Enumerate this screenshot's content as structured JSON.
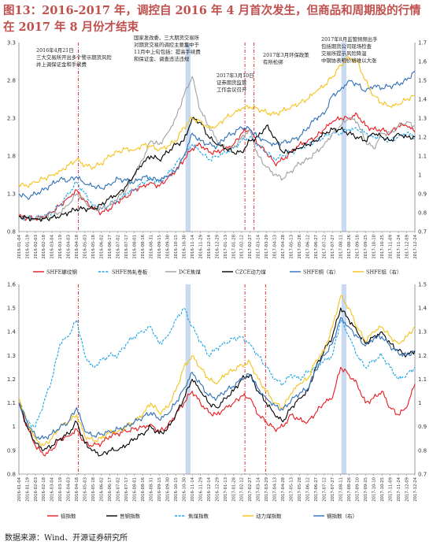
{
  "title": "图13：2016-2017 年，调控自 2016 年 4 月首次发生，但商品和周期股的行情在 2017 年 8 月份才结束",
  "source": "数据来源：Wind、开源证券研究所",
  "colors": {
    "red": "#e8191f",
    "black": "#000000",
    "lightblue": "#1aa3e8",
    "gray": "#a0a0a0",
    "gold": "#f5c21b",
    "blue": "#2f6fb7",
    "band": "#c9daf0",
    "vline": "#e0202a"
  },
  "chart_data": [
    {
      "type": "line",
      "y_left_ticks": [
        "0.8",
        "1.3",
        "1.8",
        "2.3",
        "2.8",
        "3.3"
      ],
      "y_right_ticks": [
        "0.7",
        "0.8",
        "0.9",
        "1",
        "1.1",
        "1.2",
        "1.3",
        "1.4",
        "1.5",
        "1.6",
        "1.7"
      ],
      "ylim_left": [
        0.8,
        3.3
      ],
      "ylim_right": [
        0.7,
        1.7
      ],
      "x_ticks": [
        "2016-01-04",
        "2016-01-19",
        "2016-02-03",
        "2016-02-18",
        "2016-03-04",
        "2016-03-19",
        "2016-04-03",
        "2016-04-18",
        "2016-05-03",
        "2016-05-18",
        "2016-06-02",
        "2016-06-17",
        "2016-07-02",
        "2016-07-17",
        "2016-08-01",
        "2016-08-16",
        "2016-08-31",
        "2016-09-15",
        "2016-09-30",
        "2016-10-15",
        "2016-10-30",
        "2016-11-14",
        "2016-11-29",
        "2016-12-14",
        "2016-12-29",
        "2017-01-13",
        "2017-01-28",
        "2017-02-12",
        "2017-02-27",
        "2017-03-14",
        "2017-03-29",
        "2017-04-13",
        "2017-04-28",
        "2017-05-13",
        "2017-05-28",
        "2017-06-12",
        "2017-06-27",
        "2017-07-12",
        "2017-07-27",
        "2017-08-11",
        "2017-08-26",
        "2017-09-10",
        "2017-09-25",
        "2017-10-10",
        "2017-10-25",
        "2017-11-09",
        "2017-11-24",
        "2017-12-09",
        "2017-12-24"
      ],
      "annotations": [
        {
          "text": [
            "2016年4月21日",
            "三大交易所开出多个警示期货风险",
            "并上调保证金和手续费"
          ]
        },
        {
          "text": [
            "国家发改委、三大期货交易所",
            "对期货交易的调控主要集中于",
            "11月中上旬包括：提高手续费",
            "和保证金、调查违法违规"
          ]
        },
        {
          "text": [
            "2017年3月10日",
            "证券期货监管",
            "工作会议召开"
          ]
        },
        {
          "text": [
            "2017年3月环保政策",
            "有所松绑"
          ]
        },
        {
          "text": [
            "2017年8月监管频频出手",
            "包括期货公司现场检查",
            "交易所提示风险降温",
            "中钢协表明价格难以大涨"
          ]
        }
      ],
      "series": [
        {
          "name": "SHFE螺纹钢",
          "color": "#e8191f",
          "axis": "left",
          "values": [
            1.0,
            0.98,
            0.97,
            0.99,
            1.05,
            1.15,
            1.25,
            1.35,
            1.2,
            1.1,
            1.05,
            1.1,
            1.2,
            1.25,
            1.35,
            1.4,
            1.45,
            1.4,
            1.5,
            1.6,
            1.75,
            1.9,
            1.95,
            1.85,
            1.85,
            1.9,
            1.95,
            2.1,
            2.15,
            1.95,
            1.85,
            1.7,
            1.75,
            1.85,
            1.95,
            2.0,
            2.05,
            2.15,
            2.25,
            2.3,
            2.3,
            2.35,
            2.2,
            2.15,
            2.15,
            2.1,
            2.2,
            2.2,
            2.12
          ]
        },
        {
          "name": "SHFE热轧卷板",
          "color": "#1aa3e8",
          "dash": true,
          "axis": "left",
          "values": [
            1.0,
            0.98,
            0.98,
            1.0,
            1.05,
            1.15,
            1.3,
            1.45,
            1.3,
            1.15,
            1.1,
            1.15,
            1.2,
            1.3,
            1.35,
            1.45,
            1.5,
            1.45,
            1.55,
            1.7,
            1.8,
            1.95,
            1.85,
            1.75,
            1.8,
            1.85,
            1.9,
            2.0,
            2.05,
            1.95,
            1.85,
            1.75,
            1.8,
            1.85,
            1.9,
            1.95,
            2.0,
            2.05,
            2.1,
            2.1,
            2.15,
            2.15,
            2.1,
            2.05,
            2.05,
            2.0,
            2.05,
            2.1,
            2.05
          ]
        },
        {
          "name": "DCE焦煤",
          "color": "#a0a0a0",
          "axis": "left",
          "values": [
            1.0,
            0.98,
            0.97,
            0.98,
            1.0,
            1.05,
            1.15,
            1.3,
            1.2,
            1.1,
            1.1,
            1.15,
            1.25,
            1.35,
            1.55,
            1.75,
            2.0,
            1.95,
            2.1,
            2.3,
            2.6,
            2.85,
            2.4,
            2.2,
            2.0,
            1.9,
            1.9,
            2.05,
            2.15,
            1.8,
            1.65,
            1.55,
            1.5,
            1.6,
            1.7,
            1.75,
            1.85,
            1.95,
            2.1,
            2.2,
            2.3,
            2.25,
            2.0,
            1.9,
            2.1,
            2.1,
            2.2,
            2.25,
            2.2
          ]
        },
        {
          "name": "CZCE动力煤",
          "color": "#000000",
          "axis": "left",
          "values": [
            1.0,
            0.98,
            0.97,
            0.97,
            0.98,
            1.0,
            1.05,
            1.1,
            1.1,
            1.1,
            1.15,
            1.25,
            1.3,
            1.4,
            1.55,
            1.7,
            1.8,
            1.75,
            1.85,
            1.95,
            2.0,
            2.3,
            2.25,
            2.05,
            1.95,
            1.9,
            1.85,
            1.85,
            2.0,
            2.05,
            2.2,
            2.05,
            1.85,
            1.85,
            1.9,
            1.95,
            2.0,
            2.1,
            2.15,
            2.15,
            2.1,
            2.05,
            2.0,
            2.1,
            2.05,
            2.0,
            2.1,
            2.05,
            2.05
          ]
        },
        {
          "name": "SHFE铜（右）",
          "color": "#2f6fb7",
          "axis": "right",
          "values": [
            0.9,
            0.88,
            0.9,
            0.92,
            0.95,
            0.98,
            0.97,
            0.99,
            0.95,
            0.94,
            0.93,
            0.95,
            0.98,
            0.97,
            0.96,
            0.99,
            0.98,
            0.97,
            0.99,
            1.02,
            1.1,
            1.22,
            1.18,
            1.16,
            1.15,
            1.2,
            1.22,
            1.25,
            1.24,
            1.2,
            1.18,
            1.16,
            1.17,
            1.18,
            1.2,
            1.25,
            1.3,
            1.32,
            1.42,
            1.45,
            1.5,
            1.48,
            1.44,
            1.47,
            1.46,
            1.47,
            1.48,
            1.5,
            1.55
          ]
        },
        {
          "name": "SHFE铝（右）",
          "color": "#f5c21b",
          "axis": "right",
          "values": [
            0.95,
            0.94,
            0.96,
            0.98,
            1.0,
            1.02,
            1.05,
            1.08,
            1.05,
            1.04,
            1.06,
            1.1,
            1.12,
            1.14,
            1.13,
            1.16,
            1.15,
            1.13,
            1.15,
            1.18,
            1.25,
            1.3,
            1.28,
            1.25,
            1.26,
            1.3,
            1.32,
            1.35,
            1.36,
            1.35,
            1.33,
            1.32,
            1.34,
            1.36,
            1.38,
            1.4,
            1.44,
            1.47,
            1.52,
            1.58,
            1.62,
            1.6,
            1.5,
            1.42,
            1.38,
            1.36,
            1.37,
            1.4,
            1.42
          ]
        }
      ]
    },
    {
      "type": "line",
      "y_left_ticks": [
        "0.8",
        "0.9",
        "1",
        "1.1",
        "1.2",
        "1.3",
        "1.4",
        "1.5",
        "1.6"
      ],
      "y_right_ticks": [
        "0.7",
        "0.8",
        "0.9",
        "1",
        "1.1",
        "1.2",
        "1.3",
        "1.4",
        "1.5"
      ],
      "ylim_left": [
        0.8,
        1.6
      ],
      "ylim_right": [
        0.7,
        1.5
      ],
      "x_ticks": [
        "2016-01-04",
        "2016-01-19",
        "2016-02-03",
        "2016-02-18",
        "2016-03-04",
        "2016-03-19",
        "2016-04-03",
        "2016-04-18",
        "2016-05-03",
        "2016-05-18",
        "2016-06-02",
        "2016-06-17",
        "2016-07-02",
        "2016-07-17",
        "2016-08-01",
        "2016-08-16",
        "2016-08-31",
        "2016-09-15",
        "2016-09-30",
        "2016-10-15",
        "2016-10-30",
        "2016-11-14",
        "2016-11-29",
        "2016-12-14",
        "2016-12-29",
        "2017-01-13",
        "2017-01-28",
        "2017-02-12",
        "2017-02-27",
        "2017-03-14",
        "2017-03-29",
        "2017-04-13",
        "2017-04-28",
        "2017-05-13",
        "2017-05-28",
        "2017-06-12",
        "2017-06-27",
        "2017-07-12",
        "2017-07-27",
        "2017-08-11",
        "2017-08-26",
        "2017-09-10",
        "2017-09-25",
        "2017-10-10",
        "2017-10-25",
        "2017-11-09",
        "2017-11-24",
        "2017-12-09",
        "2017-12-24"
      ],
      "series": [
        {
          "name": "铝指数",
          "color": "#e8191f",
          "axis": "left",
          "values": [
            1.1,
            1.0,
            0.92,
            0.88,
            0.9,
            0.95,
            0.96,
            0.99,
            0.93,
            0.92,
            0.93,
            0.96,
            0.97,
            0.98,
            0.99,
            1.0,
            1.01,
            0.98,
            1.0,
            1.05,
            1.1,
            1.15,
            1.1,
            1.06,
            1.05,
            1.08,
            1.1,
            1.13,
            1.12,
            1.05,
            1.02,
            0.99,
            1.0,
            1.05,
            1.03,
            1.02,
            1.06,
            1.1,
            1.12,
            1.25,
            1.22,
            1.18,
            1.1,
            1.12,
            1.15,
            1.08,
            1.05,
            1.08,
            1.18
          ]
        },
        {
          "name": "普钢指数",
          "color": "#000000",
          "axis": "left",
          "values": [
            1.1,
            1.0,
            0.93,
            0.9,
            0.92,
            0.95,
            0.97,
            1.02,
            0.93,
            0.9,
            0.88,
            0.9,
            0.9,
            0.92,
            0.95,
            0.97,
            1.0,
            0.97,
            0.99,
            1.05,
            1.12,
            1.2,
            1.15,
            1.1,
            1.08,
            1.12,
            1.15,
            1.2,
            1.22,
            1.15,
            1.1,
            1.05,
            1.02,
            1.08,
            1.12,
            1.15,
            1.25,
            1.32,
            1.38,
            1.5,
            1.45,
            1.4,
            1.35,
            1.38,
            1.4,
            1.35,
            1.32,
            1.3,
            1.32
          ]
        },
        {
          "name": "焦煤指数",
          "color": "#1aa3e8",
          "dash": true,
          "axis": "left",
          "values": [
            1.12,
            1.02,
            1.0,
            1.1,
            1.2,
            1.35,
            1.38,
            1.45,
            1.3,
            1.25,
            1.28,
            1.3,
            1.3,
            1.35,
            1.38,
            1.4,
            1.42,
            1.35,
            1.38,
            1.45,
            1.5,
            1.42,
            1.36,
            1.3,
            1.33,
            1.35,
            1.37,
            1.38,
            1.35,
            1.3,
            1.25,
            1.2,
            1.18,
            1.22,
            1.2,
            1.23,
            1.25,
            1.28,
            1.3,
            1.45,
            1.38,
            1.3,
            1.25,
            1.28,
            1.3,
            1.25,
            1.2,
            1.22,
            1.25
          ]
        },
        {
          "name": "动力煤指数",
          "color": "#f5c21b",
          "axis": "left",
          "values": [
            1.12,
            1.02,
            0.95,
            0.92,
            0.95,
            1.0,
            1.02,
            1.05,
            0.96,
            0.94,
            0.95,
            0.98,
            0.98,
            1.0,
            1.02,
            1.05,
            1.1,
            1.06,
            1.08,
            1.15,
            1.25,
            1.3,
            1.25,
            1.2,
            1.18,
            1.22,
            1.24,
            1.26,
            1.27,
            1.2,
            1.15,
            1.1,
            1.08,
            1.14,
            1.18,
            1.2,
            1.28,
            1.32,
            1.42,
            1.55,
            1.5,
            1.42,
            1.36,
            1.4,
            1.42,
            1.38,
            1.35,
            1.38,
            1.42
          ]
        },
        {
          "name": "钢指数（右）",
          "color": "#2f6fb7",
          "axis": "right",
          "values": [
            1.0,
            0.92,
            0.86,
            0.85,
            0.87,
            0.9,
            0.92,
            0.98,
            0.88,
            0.86,
            0.87,
            0.88,
            0.89,
            0.9,
            0.92,
            0.94,
            0.96,
            0.93,
            0.95,
            1.0,
            1.06,
            1.13,
            1.08,
            1.03,
            1.02,
            1.05,
            1.07,
            1.1,
            1.12,
            1.06,
            1.02,
            0.99,
            0.97,
            1.01,
            1.04,
            1.06,
            1.14,
            1.2,
            1.25,
            1.36,
            1.32,
            1.28,
            1.24,
            1.27,
            1.28,
            1.24,
            1.21,
            1.2,
            1.22
          ]
        }
      ]
    }
  ]
}
